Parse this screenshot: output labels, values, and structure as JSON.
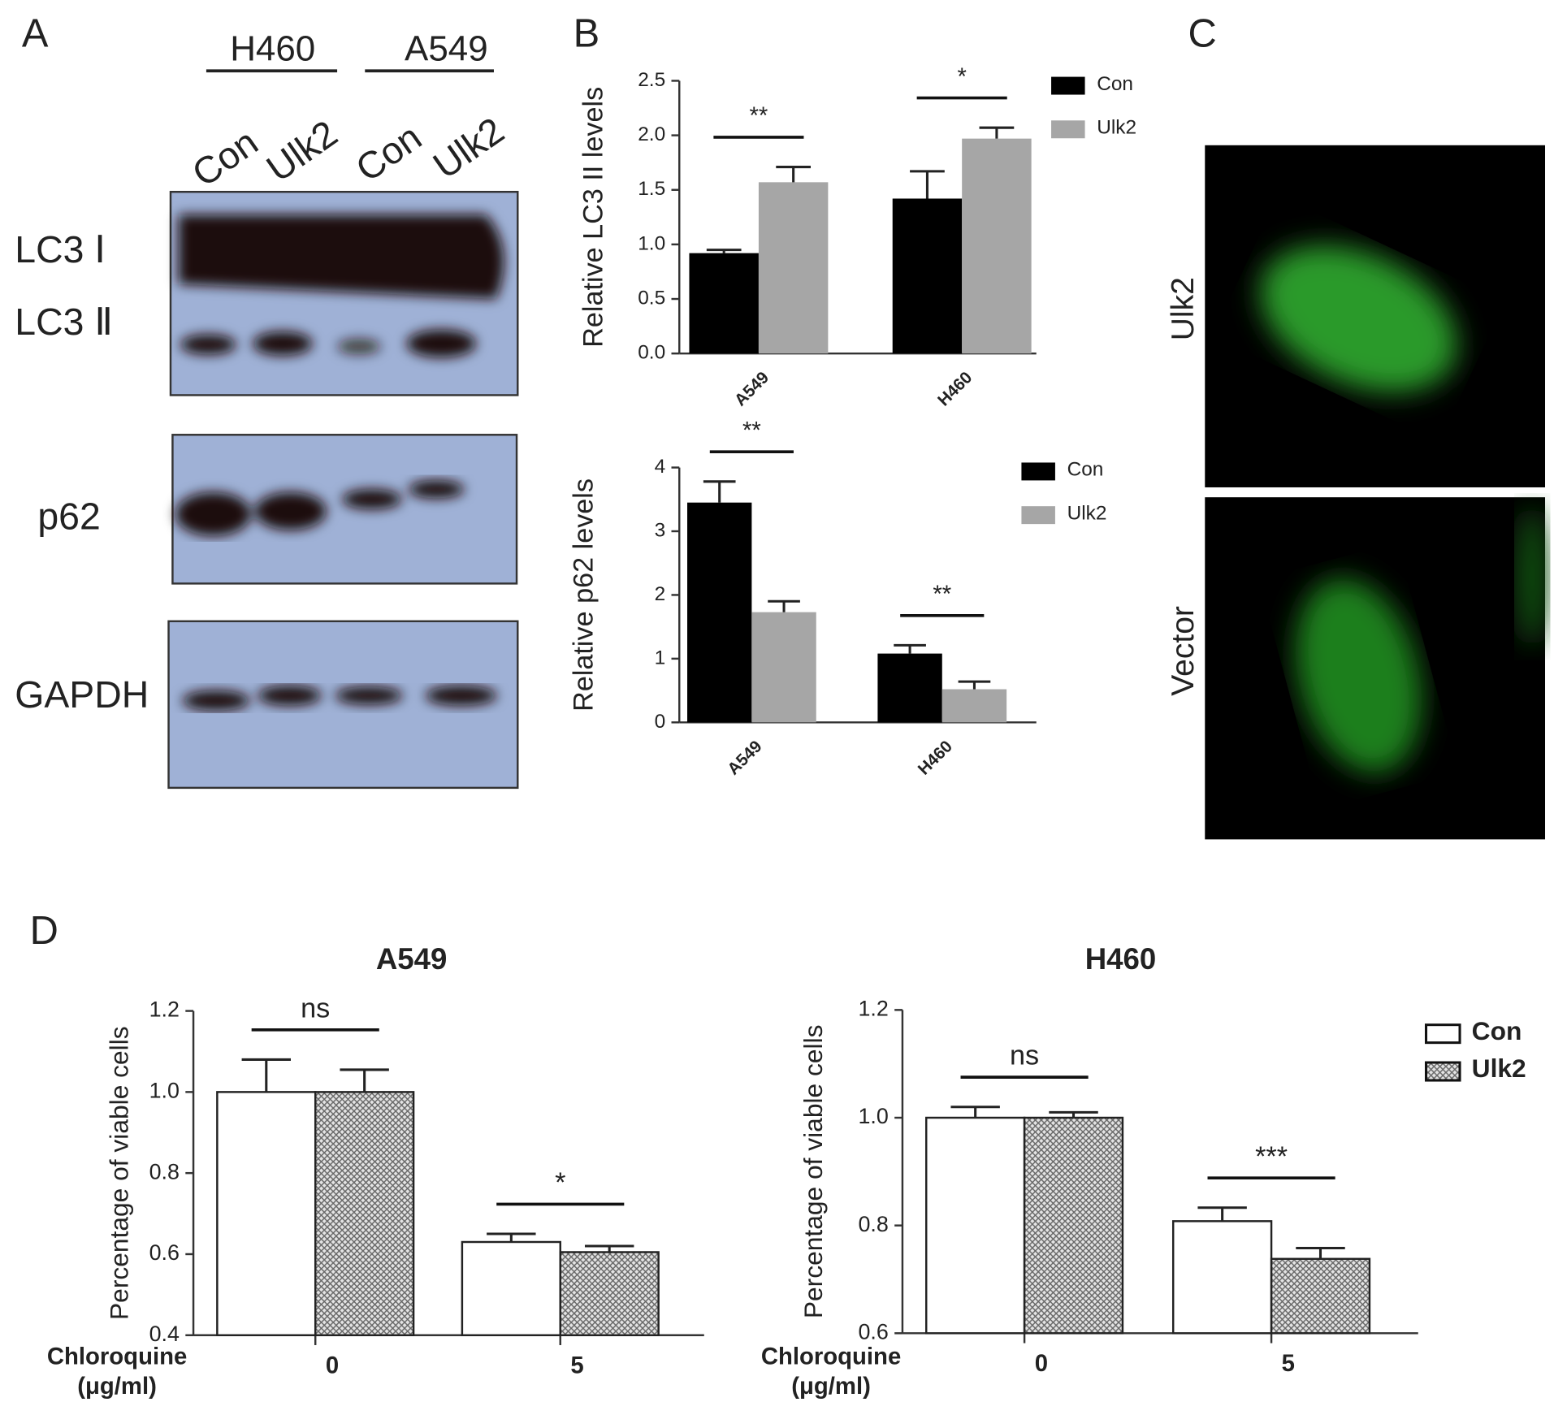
{
  "panel_labels": [
    "A",
    "B",
    "C",
    "D"
  ],
  "blot": {
    "groups": [
      "H460",
      "A549"
    ],
    "lanes": [
      "Con",
      "Ulk2",
      "Con",
      "Ulk2"
    ],
    "rows": [
      "LC3 Ⅰ",
      "LC3 Ⅱ",
      "p62",
      "GAPDH"
    ]
  },
  "micrographs": {
    "labels": [
      "Ulk2",
      "Vector"
    ]
  },
  "chart_data": [
    {
      "type": "bar",
      "ylabel": "Relative LC3 II levels",
      "categories": [
        "A549",
        "H460"
      ],
      "series": [
        {
          "name": "Con",
          "color": "#000000",
          "values": [
            0.92,
            1.42
          ],
          "errors": [
            0.03,
            0.25
          ]
        },
        {
          "name": "Ulk2",
          "color": "#a6a6a6",
          "values": [
            1.57,
            1.97
          ],
          "errors": [
            0.14,
            0.1
          ]
        }
      ],
      "ylim": [
        0,
        2.5
      ],
      "yticks": [
        {
          "value": 0,
          "label": "0.0"
        },
        0.5,
        {
          "value": 1,
          "label": "1.0"
        },
        1.5,
        {
          "value": 2,
          "label": "2.0"
        },
        2.5
      ],
      "annotations": [
        "**",
        "*"
      ],
      "legend": true
    },
    {
      "type": "bar",
      "ylabel": "Relative p62 levels",
      "categories": [
        "A549",
        "H460"
      ],
      "series": [
        {
          "name": "Con",
          "color": "#000000",
          "values": [
            3.45,
            1.08
          ],
          "errors": [
            0.33,
            0.13
          ]
        },
        {
          "name": "Ulk2",
          "color": "#a6a6a6",
          "values": [
            1.73,
            0.52
          ],
          "errors": [
            0.17,
            0.12
          ]
        }
      ],
      "ylim": [
        0,
        4
      ],
      "yticks": [
        0,
        1,
        2,
        3,
        4
      ],
      "annotations": [
        "**",
        "**"
      ],
      "legend": true
    },
    {
      "type": "bar",
      "title": "A549",
      "ylabel": "Percentage of viable cells",
      "xlabel": [
        "Chloroquine",
        "(μg/ml)"
      ],
      "categories": [
        "0",
        "5"
      ],
      "series": [
        {
          "name": "Con",
          "color": "#ffffff",
          "values": [
            1.0,
            0.63
          ],
          "errors": [
            0.08,
            0.02
          ]
        },
        {
          "name": "Ulk2",
          "color": "#bbbbbb",
          "pattern": "crosshatch",
          "values": [
            1.0,
            0.605
          ],
          "errors": [
            0.055,
            0.015
          ]
        }
      ],
      "ylim": [
        0.4,
        1.2
      ],
      "yticks": [
        0.4,
        0.6,
        0.8,
        {
          "value": 1,
          "label": "1.0"
        },
        1.2
      ],
      "annotations": [
        "ns",
        "*"
      ],
      "legend": false
    },
    {
      "type": "bar",
      "title": "H460",
      "ylabel": "Percentage of viable cells",
      "xlabel": [
        "Chloroquine",
        "(μg/ml)"
      ],
      "categories": [
        "0",
        "5"
      ],
      "series": [
        {
          "name": "Con",
          "color": "#ffffff",
          "values": [
            1.0,
            0.808
          ],
          "errors": [
            0.02,
            0.025
          ]
        },
        {
          "name": "Ulk2",
          "color": "#bbbbbb",
          "pattern": "crosshatch",
          "values": [
            1.0,
            0.738
          ],
          "errors": [
            0.01,
            0.02
          ]
        }
      ],
      "ylim": [
        0.6,
        1.2
      ],
      "yticks": [
        0.6,
        0.8,
        {
          "value": 1,
          "label": "1.0"
        },
        1.2
      ],
      "annotations": [
        "ns",
        "***"
      ],
      "legend": true
    }
  ]
}
